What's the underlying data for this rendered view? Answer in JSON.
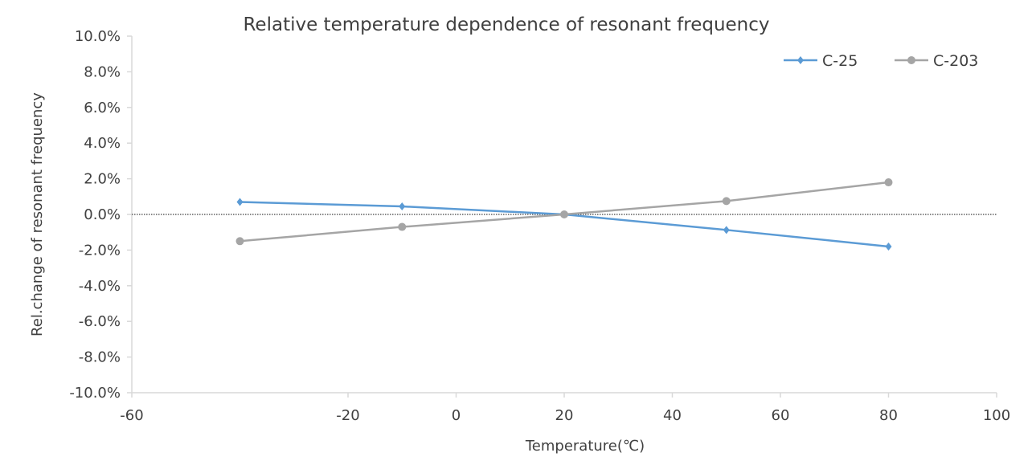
{
  "chart_data": {
    "type": "line",
    "title": "Relative temperature dependence of resonant frequency",
    "xlabel": "Temperature(℃)",
    "ylabel": "Rel.change of resonant frequency",
    "xlim": [
      -60,
      100
    ],
    "ylim": [
      -10,
      10
    ],
    "x_ticks": [
      "-60",
      "-20",
      "0",
      "20",
      "40",
      "60",
      "80",
      "100"
    ],
    "x_tick_values": [
      -60,
      -20,
      0,
      20,
      40,
      60,
      80,
      100
    ],
    "y_ticks": [
      "10.0%",
      "8.0%",
      "6.0%",
      "4.0%",
      "2.0%",
      "0.0%",
      "-2.0%",
      "-4.0%",
      "-6.0%",
      "-8.0%",
      "-10.0%"
    ],
    "y_tick_values": [
      10,
      8,
      6,
      4,
      2,
      0,
      -2,
      -4,
      -6,
      -8,
      -10
    ],
    "grid": false,
    "legend_position": "top-right",
    "zero_reference_line": true,
    "x": [
      -40,
      -10,
      20,
      50,
      80
    ],
    "series": [
      {
        "name": "C-25",
        "color": "#5b9bd5",
        "marker": "diamond",
        "values": [
          0.7,
          0.45,
          0.0,
          -0.87,
          -1.8
        ]
      },
      {
        "name": "C-203",
        "color": "#a5a5a5",
        "marker": "circle",
        "values": [
          -1.5,
          -0.7,
          0.0,
          0.75,
          1.8
        ]
      }
    ]
  }
}
